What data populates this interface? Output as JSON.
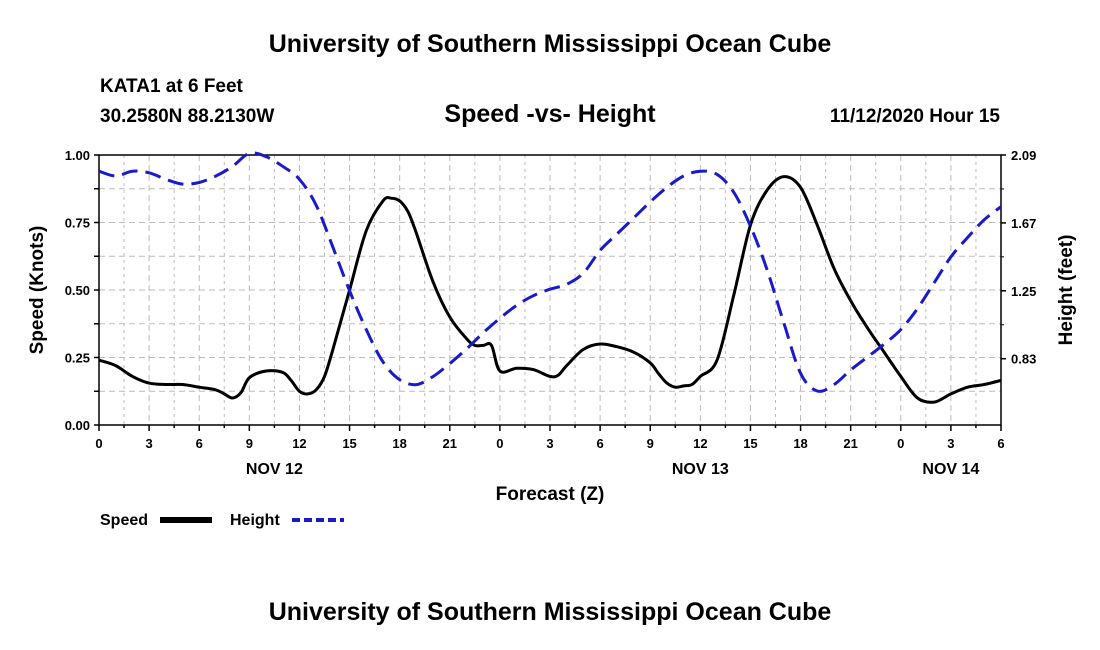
{
  "header": {
    "title_top": "University of Southern Mississippi Ocean Cube",
    "station": "KATA1 at 6 Feet",
    "coords": "30.2580N 88.2130W",
    "datetime": "11/12/2020 Hour 15",
    "title_bottom": "University of Southern Mississippi Ocean Cube"
  },
  "colors": {
    "speed": "#000000",
    "height": "#1a1acc",
    "grid": "#bbbbbb"
  },
  "chart_data": {
    "type": "line",
    "title": "Speed -vs- Height",
    "xlabel": "Forecast (Z)",
    "ylabel": "Speed (Knots)",
    "y2label": "Height (feet)",
    "x_unit": "forecast hours from NOV 12 00Z",
    "xlim": [
      0,
      54
    ],
    "ylim": [
      0,
      1
    ],
    "y2lim": [
      0.42,
      2.09
    ],
    "grid": true,
    "legend_position": "bottom-left",
    "x_ticks": [
      {
        "x": 0,
        "label": "0"
      },
      {
        "x": 3,
        "label": "3"
      },
      {
        "x": 6,
        "label": "6"
      },
      {
        "x": 9,
        "label": "9"
      },
      {
        "x": 12,
        "label": "12"
      },
      {
        "x": 15,
        "label": "15"
      },
      {
        "x": 18,
        "label": "18"
      },
      {
        "x": 21,
        "label": "21"
      },
      {
        "x": 24,
        "label": "0"
      },
      {
        "x": 27,
        "label": "3"
      },
      {
        "x": 30,
        "label": "6"
      },
      {
        "x": 33,
        "label": "9"
      },
      {
        "x": 36,
        "label": "12"
      },
      {
        "x": 39,
        "label": "15"
      },
      {
        "x": 42,
        "label": "18"
      },
      {
        "x": 45,
        "label": "21"
      },
      {
        "x": 48,
        "label": "0"
      },
      {
        "x": 51,
        "label": "3"
      },
      {
        "x": 54,
        "label": "6"
      }
    ],
    "date_labels": [
      {
        "x": 10.5,
        "label": "NOV 12"
      },
      {
        "x": 36,
        "label": "NOV 13"
      },
      {
        "x": 51,
        "label": "NOV 14"
      }
    ],
    "y_ticks": [
      {
        "value": 0,
        "label": "0.00"
      },
      {
        "value": 0.25,
        "label": "0.25"
      },
      {
        "value": 0.5,
        "label": "0.50"
      },
      {
        "value": 0.75,
        "label": "0.75"
      },
      {
        "value": 1,
        "label": "1.00"
      }
    ],
    "y2_ticks": [
      {
        "value": 0.83,
        "label": "0.83"
      },
      {
        "value": 1.25,
        "label": "1.25"
      },
      {
        "value": 1.67,
        "label": "1.67"
      },
      {
        "value": 2.09,
        "label": "2.09"
      }
    ],
    "series": [
      {
        "name": "Speed",
        "axis": "left",
        "style": "solid",
        "x": [
          0,
          1,
          2,
          3,
          4,
          5,
          6,
          7,
          7.5,
          8,
          8.5,
          9,
          10,
          11,
          11.5,
          12,
          12.5,
          13,
          13.5,
          14,
          15,
          16,
          17,
          17.5,
          18,
          18.5,
          19,
          20,
          21,
          22,
          22.5,
          23,
          23.5,
          24,
          25,
          26,
          27,
          27.5,
          28,
          29,
          30,
          31,
          32,
          33,
          33.5,
          34,
          34.5,
          35,
          35.5,
          36,
          37,
          38,
          39,
          40,
          41,
          42,
          43,
          44,
          45,
          46,
          47,
          48,
          49,
          50,
          51,
          52,
          53,
          54
        ],
        "y": [
          0.24,
          0.22,
          0.18,
          0.155,
          0.15,
          0.15,
          0.14,
          0.13,
          0.115,
          0.1,
          0.12,
          0.175,
          0.2,
          0.195,
          0.165,
          0.125,
          0.115,
          0.13,
          0.18,
          0.28,
          0.5,
          0.72,
          0.83,
          0.84,
          0.83,
          0.79,
          0.71,
          0.53,
          0.4,
          0.32,
          0.295,
          0.295,
          0.295,
          0.2,
          0.21,
          0.205,
          0.18,
          0.185,
          0.22,
          0.28,
          0.3,
          0.29,
          0.27,
          0.23,
          0.19,
          0.155,
          0.14,
          0.145,
          0.15,
          0.18,
          0.24,
          0.48,
          0.74,
          0.87,
          0.92,
          0.88,
          0.74,
          0.58,
          0.46,
          0.36,
          0.27,
          0.18,
          0.1,
          0.085,
          0.115,
          0.14,
          0.15,
          0.165
        ]
      },
      {
        "name": "Height",
        "axis": "right",
        "style": "dashed",
        "x": [
          0,
          1,
          2,
          3,
          4,
          5,
          6,
          7,
          8,
          9,
          10,
          11,
          12,
          13,
          14,
          15,
          16,
          17,
          18,
          19,
          20,
          21,
          22,
          23,
          24,
          25,
          26,
          27,
          28,
          29,
          30,
          31,
          32,
          33,
          34,
          35,
          36,
          37,
          38,
          39,
          40,
          41,
          42,
          43,
          44,
          45,
          46,
          47,
          48,
          49,
          50,
          51,
          52,
          53,
          54
        ],
        "y": [
          1.99,
          1.96,
          1.99,
          1.98,
          1.94,
          1.91,
          1.92,
          1.96,
          2.02,
          2.1,
          2.08,
          2.02,
          1.94,
          1.78,
          1.52,
          1.25,
          1.01,
          0.81,
          0.7,
          0.67,
          0.72,
          0.8,
          0.89,
          0.99,
          1.08,
          1.16,
          1.22,
          1.26,
          1.29,
          1.36,
          1.5,
          1.6,
          1.7,
          1.8,
          1.89,
          1.96,
          1.99,
          1.97,
          1.86,
          1.65,
          1.38,
          1.05,
          0.74,
          0.63,
          0.67,
          0.76,
          0.84,
          0.92,
          1.01,
          1.14,
          1.3,
          1.46,
          1.58,
          1.69,
          1.77
        ]
      }
    ]
  }
}
